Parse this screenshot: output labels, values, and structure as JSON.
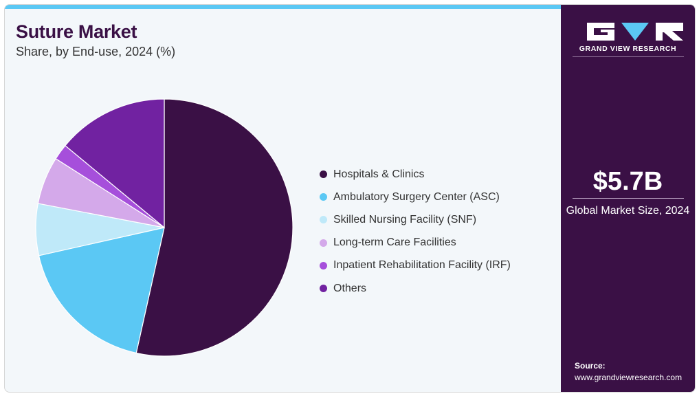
{
  "header": {
    "title": "Suture Market",
    "subtitle": "Share, by End-use, 2024 (%)"
  },
  "chart_data": {
    "type": "pie",
    "title": "Suture Market",
    "subtitle": "Share, by End-use, 2024 (%)",
    "legend_position": "right",
    "categories": [
      "Hospitals & Clinics",
      "Ambulatory Surgery Center (ASC)",
      "Skilled Nursing Facility (SNF)",
      "Long-term Care Facilities",
      "Inpatient Rehabilitation Facility (IRF)",
      "Others"
    ],
    "values": [
      53.5,
      18.0,
      6.5,
      6.0,
      2.0,
      14.0
    ],
    "colors": [
      "#3a1045",
      "#5bc8f4",
      "#bfe9f9",
      "#d4a9ea",
      "#a64fdb",
      "#7122a1"
    ]
  },
  "sidebar": {
    "brand": "GRAND VIEW RESEARCH",
    "market_size_value": "$5.7B",
    "market_size_label": "Global Market Size, 2024",
    "source_label": "Source:",
    "source_url": "www.grandviewresearch.com",
    "logo_icon": "gvr-logo-icon"
  }
}
